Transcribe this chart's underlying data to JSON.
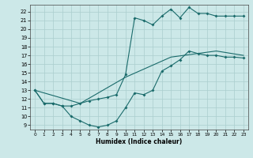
{
  "xlabel": "Humidex (Indice chaleur)",
  "xlim": [
    -0.5,
    23.5
  ],
  "ylim": [
    8.5,
    22.8
  ],
  "yticks": [
    9,
    10,
    11,
    12,
    13,
    14,
    15,
    16,
    17,
    18,
    19,
    20,
    21,
    22
  ],
  "xticks": [
    0,
    1,
    2,
    3,
    4,
    5,
    6,
    7,
    8,
    9,
    10,
    11,
    12,
    13,
    14,
    15,
    16,
    17,
    18,
    19,
    20,
    21,
    22,
    23
  ],
  "bg_color": "#cce8e8",
  "grid_color": "#aacece",
  "line_color": "#1a6b6b",
  "line1_x": [
    0,
    1,
    2,
    3,
    4,
    5,
    6,
    7,
    8,
    9,
    10,
    11,
    12,
    13,
    14,
    15,
    16,
    17,
    18,
    19,
    20,
    21,
    22,
    23
  ],
  "line1_y": [
    13.0,
    11.5,
    11.5,
    11.2,
    10.0,
    9.5,
    9.0,
    8.8,
    9.0,
    9.5,
    11.0,
    12.7,
    12.5,
    13.0,
    15.2,
    15.8,
    16.5,
    17.5,
    17.2,
    17.0,
    17.0,
    16.8,
    16.8,
    16.7
  ],
  "line2_x": [
    0,
    1,
    2,
    3,
    4,
    5,
    6,
    7,
    8,
    9,
    10,
    11,
    12,
    13,
    14,
    15,
    16,
    17,
    18,
    19,
    20,
    21,
    22,
    23
  ],
  "line2_y": [
    13.0,
    11.5,
    11.5,
    11.2,
    11.2,
    11.5,
    11.8,
    12.0,
    12.2,
    12.5,
    14.8,
    21.3,
    21.0,
    20.5,
    21.5,
    22.3,
    21.3,
    22.5,
    21.8,
    21.8,
    21.5,
    21.5,
    21.5,
    21.5
  ],
  "line3_x": [
    0,
    5,
    10,
    15,
    20,
    23
  ],
  "line3_y": [
    13.0,
    11.5,
    14.5,
    16.8,
    17.5,
    17.0
  ],
  "figsize": [
    3.2,
    2.0
  ],
  "dpi": 100
}
